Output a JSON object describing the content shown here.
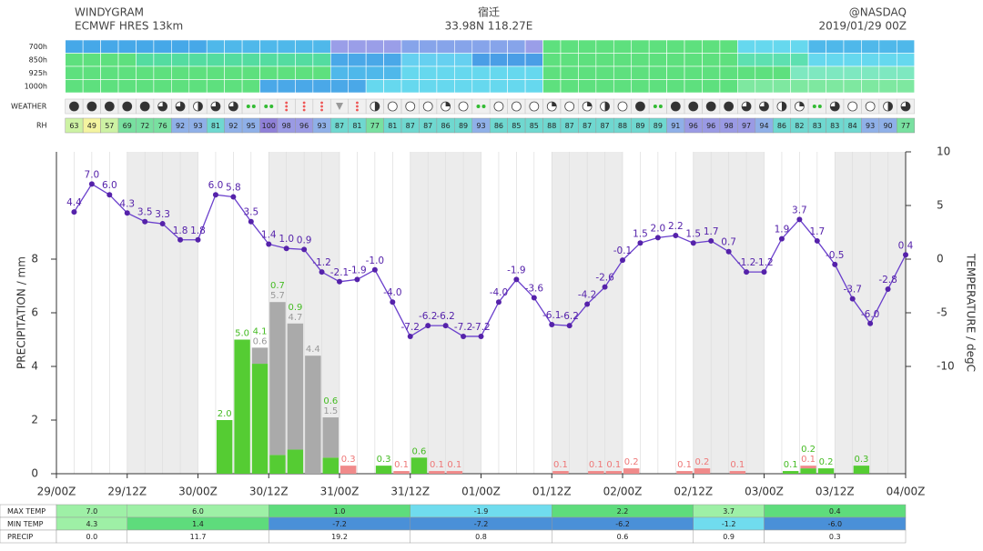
{
  "header": {
    "title": "WINDYGRAM",
    "model": "ECMWF HRES 13km",
    "location": "宿迁",
    "coords": "33.98N 118.27E",
    "credit": "@NASDAQ",
    "run": "2019/01/29 00Z"
  },
  "wind": {
    "levels": [
      "700h",
      "850h",
      "925h",
      "1000h"
    ],
    "colors": [
      [
        "#46a8e8",
        "#46a8e8",
        "#46a8e8",
        "#46a8e8",
        "#46a8e8",
        "#46a8e8",
        "#46a8e8",
        "#46a8e8",
        "#4fb8ea",
        "#4fb8ea",
        "#4fb8ea",
        "#4fb8ea",
        "#4fb8ea",
        "#4fb8ea",
        "#4fb8ea",
        "#9a9ee8",
        "#9a9ee8",
        "#9a9ee8",
        "#9a9ee8",
        "#86a4ea",
        "#86a4ea",
        "#86a4ea",
        "#86a4ea",
        "#86a4ea",
        "#86a4ea",
        "#86a4ea",
        "#9a9ee8",
        "#5ee07e",
        "#5ee07e",
        "#5ee07e",
        "#5ee07e",
        "#5ee07e",
        "#5ee07e",
        "#5ee07e",
        "#5ee07e",
        "#5ee07e",
        "#5ee07e",
        "#5ee07e",
        "#66d8ee",
        "#66d8ee",
        "#66d8ee",
        "#66d8ee",
        "#4fb8ea",
        "#4fb8ea",
        "#4fb8ea",
        "#4fb8ea",
        "#4fb8ea",
        "#4fb8ea"
      ],
      [
        "#5ee07e",
        "#5ee07e",
        "#5ee07e",
        "#5ee07e",
        "#54dca0",
        "#54dca0",
        "#54dca0",
        "#54dca0",
        "#54dca0",
        "#54dca0",
        "#54dca0",
        "#54dca0",
        "#54dca0",
        "#54dca0",
        "#54dca0",
        "#4aa8e8",
        "#4aa8e8",
        "#4aa8e8",
        "#4aa8e8",
        "#66d0f0",
        "#66d0f0",
        "#66d0f0",
        "#66d0f0",
        "#4a9ee6",
        "#4a9ee6",
        "#4a9ee6",
        "#4a9ee6",
        "#5ee07e",
        "#5ee07e",
        "#5ee07e",
        "#5ee07e",
        "#5ee07e",
        "#5ee07e",
        "#5ee07e",
        "#5ee07e",
        "#5ee07e",
        "#5ee07e",
        "#5ee07e",
        "#5ee0b0",
        "#5ee0b0",
        "#5ee0b0",
        "#5ee0b0",
        "#66d8ee",
        "#66d8ee",
        "#66d8ee",
        "#66d8ee",
        "#66d8ee",
        "#66d8ee"
      ],
      [
        "#5ee07e",
        "#5ee07e",
        "#5ee07e",
        "#5ee07e",
        "#5ee07e",
        "#5ee07e",
        "#5ee07e",
        "#5ee07e",
        "#5ee07e",
        "#5ee07e",
        "#5ee07e",
        "#5ee07e",
        "#5ee07e",
        "#5ee07e",
        "#5ee07e",
        "#4fb8ea",
        "#4fb8ea",
        "#4fb8ea",
        "#4fb8ea",
        "#66d8ee",
        "#66d8ee",
        "#66d8ee",
        "#66d8ee",
        "#66d8ee",
        "#66d8ee",
        "#66d8ee",
        "#66d8ee",
        "#5ee07e",
        "#5ee07e",
        "#5ee07e",
        "#5ee07e",
        "#5ee07e",
        "#5ee07e",
        "#5ee07e",
        "#5ee07e",
        "#5ee07e",
        "#5ee07e",
        "#5ee07e",
        "#5ee07e",
        "#5ee07e",
        "#5ee07e",
        "#7ee8c0",
        "#7ee8c0",
        "#7ee8c0",
        "#7ee8c0",
        "#7ee8c0",
        "#7ee8c0",
        "#7ee8c0"
      ],
      [
        "#5ee07e",
        "#5ee07e",
        "#5ee07e",
        "#5ee07e",
        "#5ee07e",
        "#5ee07e",
        "#5ee07e",
        "#5ee07e",
        "#5ee07e",
        "#5ee07e",
        "#5ee07e",
        "#4aa8e8",
        "#4aa8e8",
        "#4aa8e8",
        "#4aa8e8",
        "#4aa8e8",
        "#4aa8e8",
        "#66d8ee",
        "#66d8ee",
        "#66d8ee",
        "#66d8ee",
        "#66d8ee",
        "#66d8ee",
        "#66d8ee",
        "#66d8ee",
        "#66d8ee",
        "#66d8ee",
        "#5ee07e",
        "#5ee07e",
        "#5ee07e",
        "#5ee07e",
        "#5ee07e",
        "#5ee07e",
        "#5ee07e",
        "#5ee07e",
        "#5ee07e",
        "#5ee07e",
        "#5ee07e",
        "#7ee8a0",
        "#7ee8a0",
        "#7ee8a0",
        "#7ee8a0",
        "#7ee8a0",
        "#7ee8a0",
        "#7ee8a0",
        "#7ee8a0",
        "#7ee8a0",
        "#7ee8a0"
      ]
    ]
  },
  "weather": {
    "label": "WEATHER",
    "sky": [
      "overcast",
      "overcast",
      "overcast",
      "overcast",
      "overcast",
      "most",
      "most",
      "half",
      "most",
      "most",
      "rain",
      "rain",
      "snow",
      "snow",
      "snow",
      "sleet",
      "snow",
      "half",
      "clear",
      "clear",
      "clear",
      "few",
      "clear",
      "drizzle",
      "clear",
      "clear",
      "clear",
      "few",
      "clear",
      "few",
      "half",
      "clear",
      "overcast",
      "drizzle",
      "overcast",
      "overcast",
      "overcast",
      "overcast",
      "most",
      "most",
      "half",
      "few",
      "drizzle",
      "most",
      "clear",
      "clear",
      "half",
      "most"
    ]
  },
  "rh": {
    "label": "RH",
    "values": [
      63,
      49,
      57,
      69,
      72,
      76,
      92,
      93,
      81,
      92,
      95,
      100,
      98,
      96,
      93,
      87,
      81,
      77,
      81,
      87,
      87,
      86,
      89,
      93,
      86,
      85,
      85,
      88,
      87,
      87,
      87,
      88,
      89,
      89,
      91,
      96,
      96,
      98,
      97,
      94,
      86,
      82,
      83,
      83,
      84,
      93,
      90,
      77
    ]
  },
  "chart_data": {
    "type": "bar",
    "stacked": true,
    "xticks": [
      "29/00Z",
      "29/12Z",
      "30/00Z",
      "30/12Z",
      "31/00Z",
      "31/12Z",
      "01/00Z",
      "01/12Z",
      "02/00Z",
      "02/12Z",
      "03/00Z",
      "03/12Z",
      "04/00Z"
    ],
    "ylabel": "PRECIPITATION / mm",
    "y2label": "TEMPERATURE / degC",
    "ylim": [
      0,
      12
    ],
    "yticks": [
      0,
      2,
      4,
      6,
      8
    ],
    "y2lim": [
      -20,
      10
    ],
    "y2ticks": [
      -10,
      -5,
      0,
      5,
      10
    ],
    "series": [
      {
        "color": "#55cc33",
        "label_color": "#44bb22",
        "values": [
          null,
          null,
          null,
          null,
          null,
          null,
          null,
          null,
          null,
          2.0,
          5.0,
          4.1,
          0.7,
          0.9,
          null,
          0.6,
          null,
          null,
          0.3,
          null,
          0.6,
          null,
          null,
          null,
          null,
          null,
          null,
          null,
          null,
          null,
          null,
          null,
          null,
          null,
          null,
          null,
          null,
          null,
          null,
          null,
          null,
          0.1,
          0.2,
          0.2,
          null,
          0.3,
          null,
          null
        ],
        "value_labels": [
          null,
          null,
          null,
          null,
          null,
          null,
          null,
          null,
          null,
          "2.0",
          "5.0",
          "4.1",
          "0.7",
          "0.9",
          null,
          "0.6",
          null,
          null,
          "0.3",
          null,
          "0.6",
          null,
          null,
          null,
          null,
          null,
          null,
          null,
          null,
          null,
          null,
          null,
          null,
          null,
          null,
          null,
          null,
          null,
          null,
          null,
          null,
          "0.1",
          "0.2",
          "0.2",
          null,
          "0.3",
          null,
          null
        ]
      },
      {
        "color": "#aaaaaa",
        "label_color": "#999999",
        "values": [
          null,
          null,
          null,
          null,
          null,
          null,
          null,
          null,
          null,
          null,
          null,
          0.6,
          5.7,
          4.7,
          4.4,
          1.5,
          null,
          null,
          null,
          null,
          null,
          null,
          null,
          null,
          null,
          null,
          null,
          null,
          null,
          null,
          null,
          null,
          null,
          null,
          null,
          null,
          null,
          null,
          null,
          null,
          null,
          null,
          null,
          null,
          null,
          null,
          null,
          null
        ]
      },
      {
        "color": "#f08a8a",
        "label_color": "#ee7777",
        "values": [
          null,
          null,
          null,
          null,
          null,
          null,
          null,
          null,
          null,
          null,
          null,
          null,
          null,
          null,
          null,
          null,
          0.3,
          null,
          null,
          0.1,
          null,
          0.1,
          0.1,
          null,
          null,
          null,
          null,
          null,
          0.1,
          null,
          0.1,
          0.1,
          0.2,
          null,
          null,
          0.1,
          0.2,
          null,
          0.1,
          null,
          null,
          null,
          0.1,
          null,
          null,
          null,
          null,
          null
        ]
      },
      {
        "type": "line",
        "axis": "y2",
        "color": "#6a3fcc",
        "label_color": "#5522aa",
        "values": [
          4.4,
          7.0,
          6.0,
          4.3,
          3.5,
          3.3,
          1.8,
          1.8,
          6.0,
          5.8,
          3.5,
          1.4,
          1.0,
          0.9,
          -1.2,
          -2.1,
          -1.9,
          -1.0,
          -4.0,
          -7.2,
          -6.2,
          -6.2,
          -7.2,
          -7.2,
          -4.0,
          -1.9,
          -3.6,
          -6.1,
          -6.2,
          -4.2,
          -2.6,
          -0.1,
          1.5,
          2.0,
          2.2,
          1.5,
          1.7,
          0.7,
          -1.2,
          -1.2,
          1.9,
          3.7,
          1.7,
          -0.5,
          -3.7,
          -6.0,
          -2.8,
          0.4
        ],
        "value_labels": [
          "4.4",
          "7.0",
          "6.0",
          "4.3",
          "3.5",
          "3.3",
          "1.8",
          "1.8",
          "6.0",
          "5.8",
          "3.5",
          "1.4",
          "1.0",
          "0.9",
          "-1.2",
          "-2.1",
          "-1.9",
          "-1.0",
          "-4.0",
          "-7.2",
          "-6.2",
          "-6.2",
          "-7.2",
          "-7.2",
          "-4.0",
          "-1.9",
          "-3.6",
          "-6.1",
          "-6.2",
          "-4.2",
          "-2.6",
          "-0.1",
          "1.5",
          "2.0",
          "2.2",
          "1.5",
          "1.7",
          "0.7",
          "-1.2",
          "-1.2",
          "1.9",
          "3.7",
          "1.7",
          "-0.5",
          "-3.7",
          "-6.0",
          "-2.8",
          "0.4"
        ]
      }
    ]
  },
  "daily": {
    "rows": [
      {
        "label": "MAX TEMP",
        "values": [
          "7.0",
          "6.0",
          "1.0",
          "-1.9",
          "2.2",
          "3.7",
          "0.4"
        ]
      },
      {
        "label": "MIN TEMP",
        "values": [
          "4.3",
          "1.4",
          "-7.2",
          "-7.2",
          "-6.2",
          "-1.2",
          "-6.0"
        ]
      },
      {
        "label": "PRECIP",
        "values": [
          "0.0",
          "11.7",
          "19.2",
          "0.8",
          "0.6",
          "0.9",
          "0.3"
        ]
      }
    ]
  }
}
